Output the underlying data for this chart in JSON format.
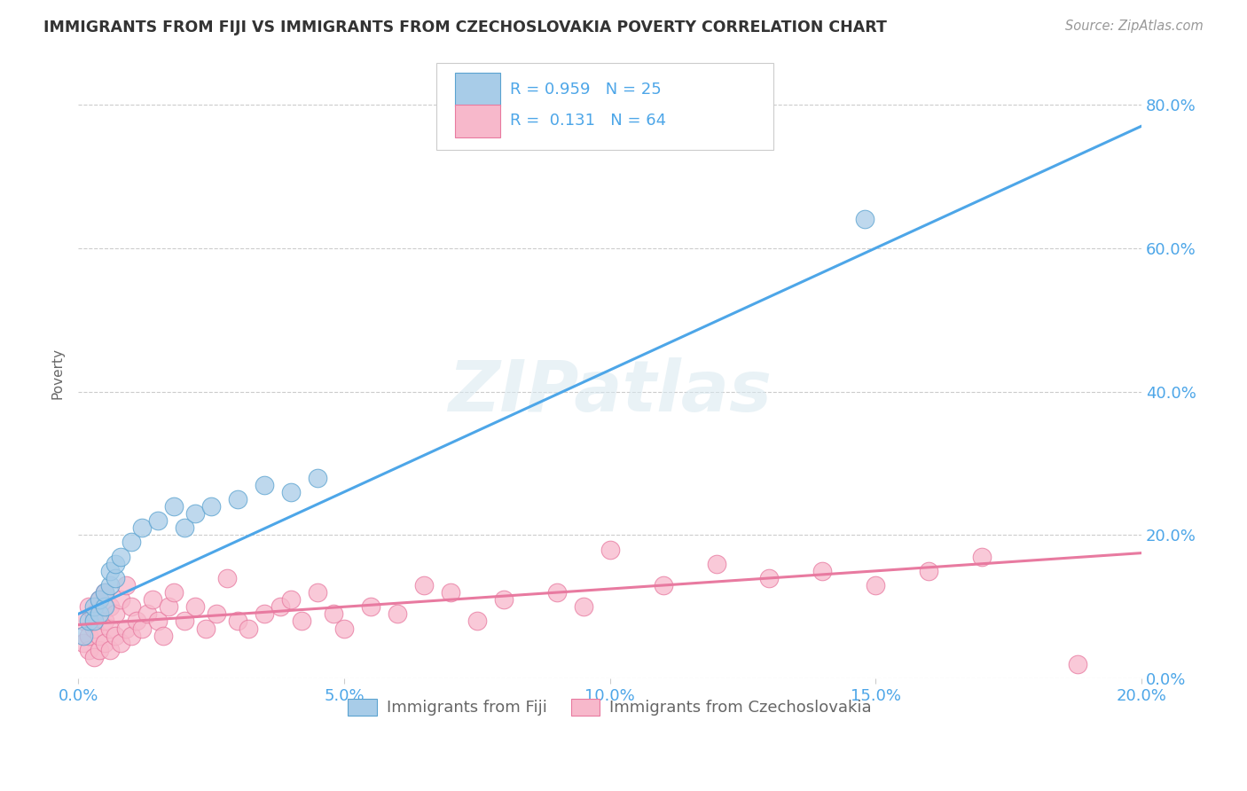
{
  "title": "IMMIGRANTS FROM FIJI VS IMMIGRANTS FROM CZECHOSLOVAKIA POVERTY CORRELATION CHART",
  "source": "Source: ZipAtlas.com",
  "ylabel": "Poverty",
  "xlim": [
    0.0,
    0.2
  ],
  "ylim": [
    0.0,
    0.85
  ],
  "x_ticks": [
    0.0,
    0.05,
    0.1,
    0.15,
    0.2
  ],
  "y_ticks": [
    0.0,
    0.2,
    0.4,
    0.6,
    0.8
  ],
  "watermark": "ZIPatlas",
  "fiji_color": "#a8cce8",
  "fiji_edge_color": "#5ba3d0",
  "czech_color": "#f7b8cb",
  "czech_edge_color": "#e87aa0",
  "fiji_R": 0.959,
  "fiji_N": 25,
  "czech_R": 0.131,
  "czech_N": 64,
  "fiji_line_color": "#4da6e8",
  "czech_line_color": "#e87aa0",
  "fiji_scatter_x": [
    0.001,
    0.002,
    0.003,
    0.003,
    0.004,
    0.004,
    0.005,
    0.005,
    0.006,
    0.006,
    0.007,
    0.007,
    0.008,
    0.01,
    0.012,
    0.015,
    0.018,
    0.02,
    0.022,
    0.025,
    0.03,
    0.035,
    0.04,
    0.045,
    0.148
  ],
  "fiji_scatter_y": [
    0.06,
    0.08,
    0.08,
    0.1,
    0.09,
    0.11,
    0.1,
    0.12,
    0.13,
    0.15,
    0.14,
    0.16,
    0.17,
    0.19,
    0.21,
    0.22,
    0.24,
    0.21,
    0.23,
    0.24,
    0.25,
    0.27,
    0.26,
    0.28,
    0.64
  ],
  "czech_scatter_x": [
    0.001,
    0.001,
    0.002,
    0.002,
    0.002,
    0.003,
    0.003,
    0.003,
    0.004,
    0.004,
    0.004,
    0.005,
    0.005,
    0.005,
    0.006,
    0.006,
    0.006,
    0.007,
    0.007,
    0.008,
    0.008,
    0.009,
    0.009,
    0.01,
    0.01,
    0.011,
    0.012,
    0.013,
    0.014,
    0.015,
    0.016,
    0.017,
    0.018,
    0.02,
    0.022,
    0.024,
    0.026,
    0.028,
    0.03,
    0.032,
    0.035,
    0.038,
    0.04,
    0.042,
    0.045,
    0.048,
    0.05,
    0.055,
    0.06,
    0.065,
    0.07,
    0.075,
    0.08,
    0.09,
    0.095,
    0.1,
    0.11,
    0.12,
    0.13,
    0.14,
    0.15,
    0.16,
    0.17,
    0.188
  ],
  "czech_scatter_y": [
    0.05,
    0.08,
    0.04,
    0.06,
    0.1,
    0.03,
    0.07,
    0.09,
    0.04,
    0.06,
    0.11,
    0.05,
    0.08,
    0.12,
    0.04,
    0.07,
    0.1,
    0.06,
    0.09,
    0.05,
    0.11,
    0.07,
    0.13,
    0.06,
    0.1,
    0.08,
    0.07,
    0.09,
    0.11,
    0.08,
    0.06,
    0.1,
    0.12,
    0.08,
    0.1,
    0.07,
    0.09,
    0.14,
    0.08,
    0.07,
    0.09,
    0.1,
    0.11,
    0.08,
    0.12,
    0.09,
    0.07,
    0.1,
    0.09,
    0.13,
    0.12,
    0.08,
    0.11,
    0.12,
    0.1,
    0.18,
    0.13,
    0.16,
    0.14,
    0.15,
    0.13,
    0.15,
    0.17,
    0.02
  ],
  "fiji_line_x0": 0.0,
  "fiji_line_y0": 0.09,
  "fiji_line_x1": 0.2,
  "fiji_line_y1": 0.77,
  "czech_line_x0": 0.0,
  "czech_line_y0": 0.075,
  "czech_line_x1": 0.2,
  "czech_line_y1": 0.175
}
